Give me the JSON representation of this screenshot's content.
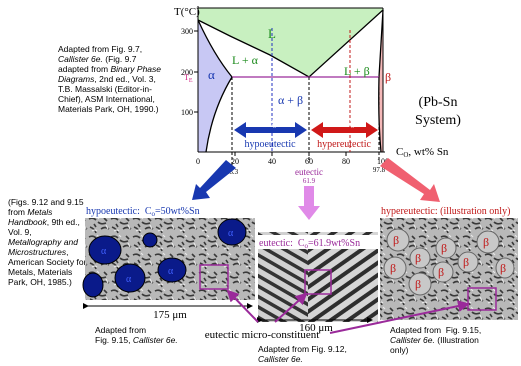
{
  "phase_diagram": {
    "y_axis_label": "T(°C)",
    "y_ticks": [
      "300",
      "200",
      "100"
    ],
    "x_ticks": [
      "0",
      "20",
      "40",
      "60",
      "80",
      "100"
    ],
    "x_axis_label": "C",
    "x_axis_label_sub": "O",
    "x_axis_unit": ", wt% Sn",
    "eutectic_temp": "T",
    "eutectic_temp_sub": "E",
    "regions": [
      "L",
      "L + α",
      "α",
      "α + β",
      "L + β",
      "β"
    ],
    "compositions": [
      "18.3",
      "61.9",
      "97.8"
    ],
    "co_label": "C",
    "co_label_sub": "o",
    "hypoeutectic": "hypoeutectic",
    "hypereutectic": "hypereutectic",
    "eutectic": "eutectic",
    "system": [
      "(Pb-Sn",
      "System)"
    ]
  },
  "source_note": [
    "Adapted from Fig. 9.7,",
    "Callister 6e.",
    " (Fig. 9.7",
    "adapted from ",
    "Binary Phase",
    "Diagrams",
    ", 2nd ed., Vol. 3,",
    "T.B. Massalski (Editor-in-",
    "Chief), ASM International,",
    "Materials Park, OH, 1990.)"
  ],
  "figure_note": [
    "(Figs. 9.12 and 9.15",
    "from ",
    "Metals",
    "Handbook",
    ", 9th ed.,",
    "Vol. 9,",
    "Metallography and",
    "Microstructures",
    ",",
    "American Society for",
    "Metals, Materials",
    "Park, OH, 1985.)"
  ],
  "micrographs": [
    {
      "title": "hypoeutectic:  C",
      "title_sub": "o",
      "title_rest": "=50wt%Sn",
      "scale": "175 μm",
      "caption": [
        "Adapted from",
        "Fig. 9.15, ",
        "Callister 6e."
      ]
    },
    {
      "title": "eutectic:  C",
      "title_sub": "o",
      "title_rest": "=61.9wt%Sn",
      "scale": "160 μm",
      "caption": [
        "Adapted from Fig. 9.12,",
        "Callister 6e."
      ]
    },
    {
      "title": "hypereutectic: (illustration only)",
      "caption": [
        "Adapted from  Fig. 9.15,",
        "Callister 6e.",
        " (Illustration",
        "only)"
      ]
    }
  ],
  "microconstituent": "eutectic micro-constituent"
}
